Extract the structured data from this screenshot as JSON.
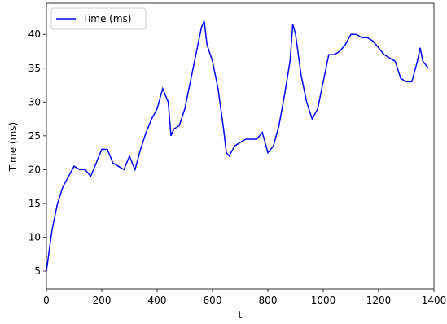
{
  "chart_data": {
    "type": "line",
    "x_label": "t",
    "y_label": "Time (ms)",
    "x": [
      0,
      20,
      40,
      60,
      80,
      100,
      120,
      140,
      160,
      180,
      200,
      220,
      240,
      260,
      280,
      300,
      320,
      340,
      360,
      380,
      400,
      420,
      440,
      450,
      460,
      480,
      500,
      520,
      540,
      560,
      570,
      580,
      600,
      620,
      640,
      650,
      660,
      680,
      700,
      720,
      740,
      760,
      780,
      800,
      820,
      840,
      860,
      880,
      890,
      900,
      920,
      940,
      960,
      980,
      1000,
      1020,
      1040,
      1060,
      1080,
      1100,
      1120,
      1140,
      1160,
      1180,
      1200,
      1220,
      1240,
      1260,
      1280,
      1300,
      1320,
      1340,
      1350,
      1360,
      1380
    ],
    "series": [
      {
        "name": "Time (ms)",
        "color": "#0000ff",
        "values": [
          5,
          11,
          15,
          17.5,
          19,
          20.5,
          20,
          20,
          19,
          21,
          23,
          23,
          21,
          20.5,
          20,
          22,
          20,
          23,
          25.5,
          27.5,
          29,
          32,
          30,
          25,
          26,
          26.5,
          29,
          33,
          37,
          41,
          42,
          38.5,
          36,
          32,
          26,
          22.5,
          22,
          23.5,
          24,
          24.5,
          24.5,
          24.5,
          25.5,
          22.5,
          23.5,
          26.5,
          31,
          36,
          41.5,
          40,
          34,
          30,
          27.5,
          29,
          33,
          37,
          37,
          37.5,
          38.5,
          40,
          40,
          39.5,
          39.5,
          39,
          38,
          37,
          36.5,
          36,
          33.5,
          33,
          33,
          36,
          38,
          36,
          35
        ]
      }
    ],
    "xlim": [
      0,
      1400
    ],
    "xticks": [
      0,
      200,
      400,
      600,
      800,
      1000,
      1200,
      1400
    ],
    "ylim": [
      2.35,
      44.6
    ],
    "yticks": [
      5,
      10,
      15,
      20,
      25,
      30,
      35,
      40
    ],
    "legend": "upper left"
  }
}
